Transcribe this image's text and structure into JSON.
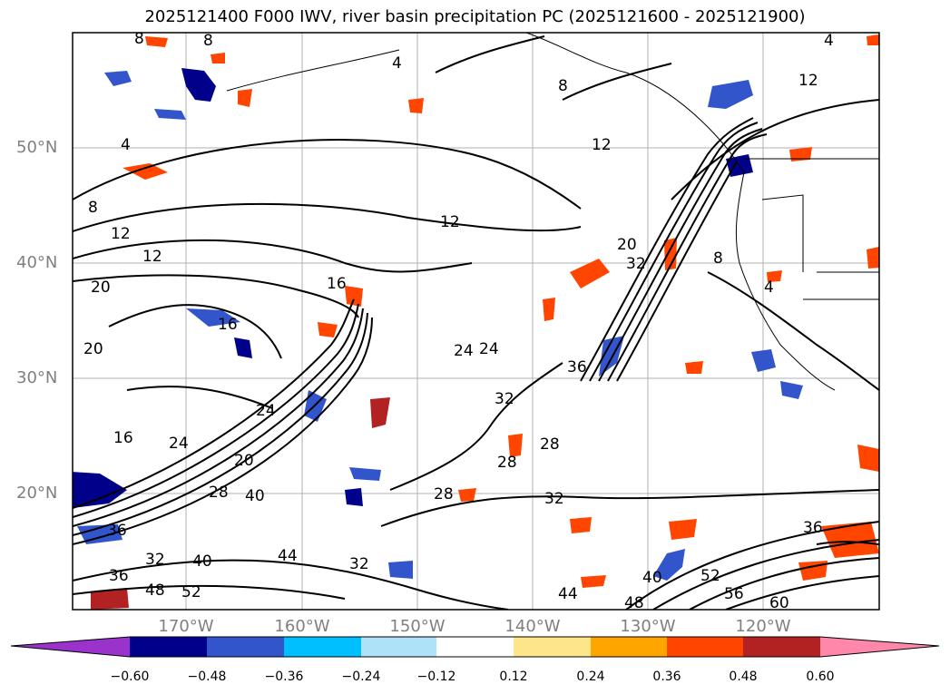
{
  "title": "2025121400 F000 IWV, river basin precipitation PC (2025121600 - 2025121900)",
  "map": {
    "lat_labels": [
      "50°N",
      "40°N",
      "30°N",
      "20°N"
    ],
    "lon_labels": [
      "170°W",
      "160°W",
      "150°W",
      "140°W",
      "130°W",
      "120°W"
    ],
    "contour_labels": [
      "8",
      "8",
      "4",
      "4",
      "8",
      "12",
      "12",
      "4",
      "8",
      "12",
      "12",
      "16",
      "12",
      "16",
      "20",
      "24",
      "20",
      "24",
      "28",
      "36",
      "32",
      "20",
      "24",
      "32",
      "36",
      "28",
      "28",
      "32",
      "16",
      "24",
      "20",
      "28",
      "40",
      "36",
      "32",
      "40",
      "44",
      "48",
      "52",
      "32",
      "44",
      "48",
      "40",
      "52",
      "56",
      "60",
      "36",
      "4",
      "8"
    ]
  },
  "colorbar": {
    "ticks": [
      "−0.60",
      "−0.48",
      "−0.36",
      "−0.24",
      "−0.12",
      "0.12",
      "0.24",
      "0.36",
      "0.48",
      "0.60"
    ],
    "colors": [
      "#9933cc",
      "#00008b",
      "#3355cc",
      "#00bfff",
      "#aee2f8",
      "#ffffff",
      "#fde68a",
      "#ffa500",
      "#ff4500",
      "#b22222",
      "#ff88aa"
    ]
  }
}
